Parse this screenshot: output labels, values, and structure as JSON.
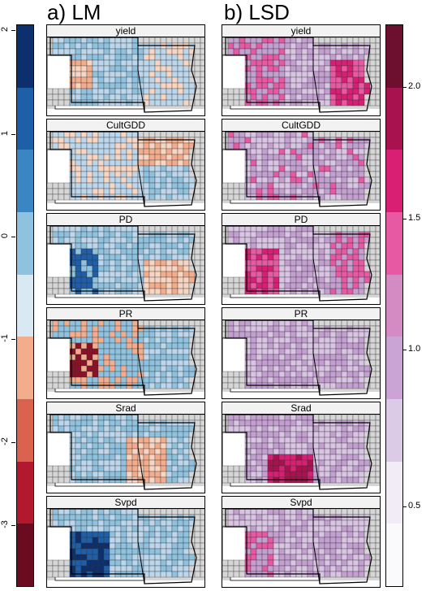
{
  "panels": {
    "left_title": "a) LM",
    "right_title": "b) LSD"
  },
  "facets": [
    "yield",
    "CultGDD",
    "PD",
    "PR",
    "Srad",
    "Svpd"
  ],
  "left_legend": {
    "ticks": [
      "2",
      "1",
      "0",
      "-1",
      "-2",
      "-3"
    ],
    "colors": [
      "#0d2f6e",
      "#1f5fa8",
      "#3b85c3",
      "#8fc2df",
      "#d9e9f4",
      "#f4ad8c",
      "#d9634f",
      "#b3192e",
      "#6b0b1f"
    ]
  },
  "right_legend": {
    "ticks": [
      "2.0",
      "1.5",
      "1.0",
      "0.5"
    ],
    "colors": [
      "#6d0f2f",
      "#a8124f",
      "#d91f73",
      "#e75aa3",
      "#d48bc4",
      "#c9a4d4",
      "#dccbe6",
      "#f1ecf6",
      "#fafafc"
    ]
  },
  "map_colors": {
    "background_gray": "#d6d6d6",
    "outline": "#333333",
    "lm_light_blue": "#bcd7ec",
    "lm_mid_blue": "#8fc2df",
    "lm_dark_blue": "#1f5fa8",
    "lm_navy": "#0d2f6e",
    "lm_light_orange": "#f7d5c2",
    "lm_orange": "#f4ad8c",
    "lm_dark_red": "#8c1027",
    "lsd_lavender": "#d9c4e3",
    "lsd_lilac": "#c49fd1",
    "lsd_pink": "#e75aa3",
    "lsd_magenta": "#d91f73",
    "lsd_crimson": "#a8124f"
  }
}
